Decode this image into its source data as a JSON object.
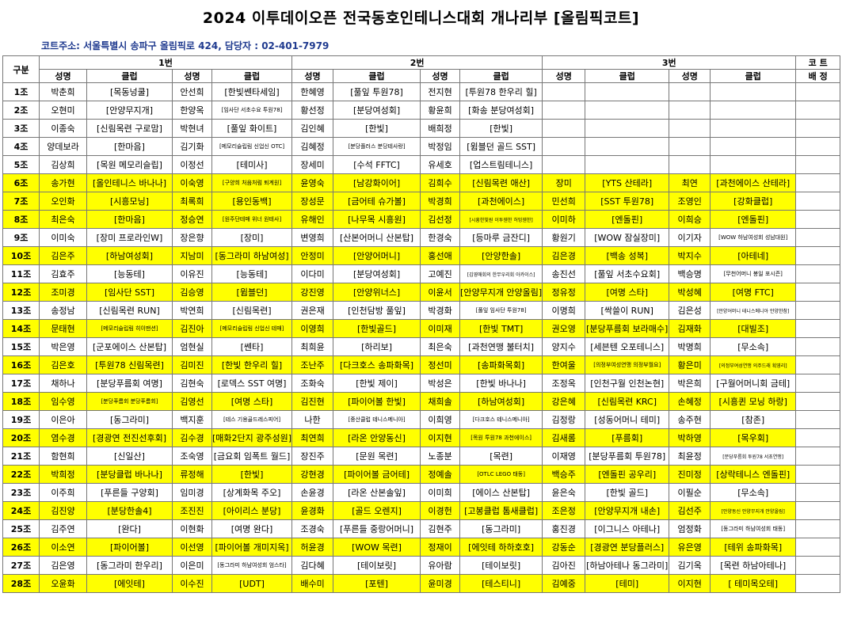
{
  "title": "2024 이투데이오픈 전국동호인테니스대회 개나리부 [올림픽코트]",
  "court_info": "코트주소: 서울특별시 송파구 올림픽로 424, 담당자 : 02-401-7979",
  "header": {
    "group": "구분",
    "court1": "1번",
    "court2": "2번",
    "court3": "3번",
    "court_no": "코 트",
    "name": "성명",
    "club": "클럽",
    "assign": "배 정"
  },
  "rows": [
    {
      "g": "1조",
      "hl": false,
      "c": [
        "박춘희",
        "[목동넝쿨]",
        "안선희",
        "[한빛쎈타세임]",
        "한혜영",
        "[풀잎 투원78]",
        "전지현",
        "[투원78 한우리 힐]",
        "",
        "",
        "",
        ""
      ]
    },
    {
      "g": "2조",
      "hl": false,
      "c": [
        "오현미",
        "[안양무지개]",
        "한양옥",
        "[임사단 서초수요 투원78]",
        "황선정",
        "[분당여성회]",
        "황윤희",
        "[화송 분당여성회]",
        "",
        "",
        "",
        ""
      ]
    },
    {
      "g": "3조",
      "hl": false,
      "c": [
        "이종숙",
        "[신림목련 구로맘]",
        "박현녀",
        "[풀잎 화이트]",
        "김인혜",
        "[한빛]",
        "배희정",
        "[한빛]",
        "",
        "",
        "",
        ""
      ]
    },
    {
      "g": "4조",
      "hl": false,
      "c": [
        "양데보라",
        "[한마음]",
        "김기화",
        "[메모리슬립림 신업신 OTC]",
        "김혜정",
        "[분당플러스 분당테사랑]",
        "박정임",
        "[윔블던 골드 SST]",
        "",
        "",
        "",
        ""
      ]
    },
    {
      "g": "5조",
      "hl": false,
      "c": [
        "김상희",
        "[목원 메모리슬립]",
        "이정선",
        "[테미사]",
        "장세미",
        "[수석 FFTC]",
        "유세호",
        "[업스트림테니스]",
        "",
        "",
        "",
        ""
      ]
    },
    {
      "g": "6조",
      "hl": true,
      "c": [
        "송가현",
        "[올인테니스 바나나]",
        "이숙영",
        "[구양희 처음처럼 퇴계원]",
        "윤영숙",
        "[남강화이어]",
        "김희수",
        "[신림목련 애산]",
        "장미",
        "[YTS 산테라]",
        "최연",
        "[과천에이스 산테라]"
      ]
    },
    {
      "g": "7조",
      "hl": true,
      "c": [
        "오인화",
        "[시흥모닝]",
        "최록희",
        "[용인동백]",
        "장성문",
        "[금어테 슈가볼]",
        "박경희",
        "[과천에이스]",
        "민선희",
        "[SST 투원78]",
        "조영인",
        "[강화클럽]"
      ]
    },
    {
      "g": "8조",
      "hl": true,
      "c": [
        "최은숙",
        "[한마음]",
        "정승연",
        "[원주단테매 위너 원테사]",
        "유해인",
        "[나무목 시흥원]",
        "김선정",
        "[시흥한빛원 이투웬한 허밍웬한]",
        "이미하",
        "[엔돌핀]",
        "이희승",
        "[엔돌핀]"
      ]
    },
    {
      "g": "9조",
      "hl": false,
      "c": [
        "이미숙",
        "[장미 프로라인W]",
        "장은향",
        "[장미]",
        "변영희",
        "[산본어머니 산본탑]",
        "한경숙",
        "[등마루 금잔디]",
        "황원기",
        "[WOW 잠실장미]",
        "이기자",
        "[WOW 하남여성회 성남대원]"
      ]
    },
    {
      "g": "10조",
      "hl": true,
      "c": [
        "김은주",
        "[하남여성회]",
        "지남미",
        "[동그라미 하남여성]",
        "안정미",
        "[안양어머니]",
        "홍선애",
        "[안양한솔]",
        "김은경",
        "[백송 성복]",
        "박지수",
        "[아테네]"
      ]
    },
    {
      "g": "11조",
      "hl": false,
      "c": [
        "김효주",
        "[능동테]",
        "이유진",
        "[능동테]",
        "이다미",
        "[분당여성회]",
        "고예진",
        "[김영애회의 한무우리회 아카이스]",
        "송진선",
        "[풀잎 서초수요회]",
        "백승명",
        "[무천어머니 봉일 포시즌]"
      ]
    },
    {
      "g": "12조",
      "hl": true,
      "c": [
        "조미경",
        "[임사단 SST]",
        "김승영",
        "[윔블던]",
        "강진영",
        "[안양위너스]",
        "이윤서",
        "[안양무지개 안양올림]",
        "정유정",
        "[여명 스타]",
        "박성혜",
        "[여명 FTC]"
      ]
    },
    {
      "g": "13조",
      "hl": false,
      "c": [
        "송정남",
        "[신림목련 RUN]",
        "박연희",
        "[신림목련]",
        "권은재",
        "[인천담방 풀잎]",
        "박경화",
        "[풀잎 임사단 투원78]",
        "이명희",
        "[싹쓸이 RUN]",
        "김은성",
        "[안양어머니 테니스메니아 안양한참]"
      ]
    },
    {
      "g": "14조",
      "hl": true,
      "c": [
        "문태현",
        "[메모리슬립림 히이맨션]",
        "김진아",
        "[메모리슬립림 신업신 테매]",
        "이영희",
        "[한빛골드]",
        "이미재",
        "[한빛 TMT]",
        "권오영",
        "[분당푸름회 보라매수]",
        "김재화",
        "[대빌조]"
      ]
    },
    {
      "g": "15조",
      "hl": false,
      "c": [
        "박은영",
        "[군포에이스 산본탑]",
        "엄현실",
        "[쎈타]",
        "최희윤",
        "[하리보]",
        "최은숙",
        "[과천연맹 불터치]",
        "양지수",
        "[세븐텐 오포테니스]",
        "박명희",
        "[무소속]"
      ]
    },
    {
      "g": "16조",
      "hl": true,
      "c": [
        "김은호",
        "[투원78 신림목련]",
        "김미진",
        "[한빛 한우리 힐]",
        "조난주",
        "[다크호스 송파화목]",
        "정선미",
        "[송파화목회]",
        "한여울",
        "[의정부여성연맹 의정부월요]",
        "황은미",
        "[의정부여성연맹 의주드래 획영리]"
      ]
    },
    {
      "g": "17조",
      "hl": false,
      "c": [
        "채하나",
        "[분당푸름회 여명]",
        "김현숙",
        "[로덱스 SST 여명]",
        "조화숙",
        "[한빛 제이]",
        "박성은",
        "[한빛 바나나]",
        "조정옥",
        "[인천구월 인천논현]",
        "박은희",
        "[구월어머니회 금테]"
      ]
    },
    {
      "g": "18조",
      "hl": true,
      "c": [
        "임수영",
        "[분당푸름회 분당푸름회]",
        "김영선",
        "[여명 스타]",
        "김진현",
        "[파이어볼 한빛]",
        "채희솔",
        "[하남여성회]",
        "강은혜",
        "[신림목련 KRC]",
        "손혜정",
        "[시흥퀸 모닝 하랑]"
      ]
    },
    {
      "g": "19조",
      "hl": false,
      "c": [
        "이은아",
        "[동그라미]",
        "백지훈",
        "[테스 기용골드레스피어]",
        "나한",
        "[중산클럽 테니스메니아]",
        "이희영",
        "[다크호스 테니스메니아]",
        "김정랑",
        "[성동어머니 테미]",
        "송주현",
        "[참존]"
      ]
    },
    {
      "g": "20조",
      "hl": true,
      "c": [
        "염수경",
        "[경광연 전진선후회]",
        "김수경",
        "[매화2단지 광주성원]",
        "최연희",
        "[라온 안양동신]",
        "이지현",
        "[목원 투원78 과천에이스]",
        "김새롬",
        "[푸름회]",
        "박하영",
        "[목우회]"
      ]
    },
    {
      "g": "21조",
      "hl": false,
      "c": [
        "함현희",
        "[신일산]",
        "조숙영",
        "[금요회 임폭트 월드]",
        "장진주",
        "[문원 목련]",
        "노종분",
        "[목련]",
        "이재영",
        "[분당푸름회 투원78]",
        "최윤정",
        "[분당푸름회 투원78 서초연맹]"
      ]
    },
    {
      "g": "22조",
      "hl": true,
      "c": [
        "박희정",
        "[분당클럽 바나나]",
        "류정해",
        "[한빛]",
        "강현경",
        "[파이어볼 금어테]",
        "정예솔",
        "[OTLC LEGO 태동]",
        "백승주",
        "[엔돌핀 공우리]",
        "진미정",
        "[상락테니스 엔돌핀]"
      ]
    },
    {
      "g": "23조",
      "hl": false,
      "c": [
        "이주희",
        "[푸른들 구양회]",
        "임미경",
        "[상계화목 주오]",
        "손윤경",
        "[라온 산본솔잎]",
        "이미희",
        "[에이스 산본탑]",
        "윤은숙",
        "[한빛 골드]",
        "이필순",
        "[무소속]"
      ]
    },
    {
      "g": "24조",
      "hl": true,
      "c": [
        "김진양",
        "[분당한솔4]",
        "조진진",
        "[아이리스 분당]",
        "윤경화",
        "[골드 오렌지]",
        "이경헌",
        "[고봉클럽 톰새클럽]",
        "조은정",
        "[안양무지개 내손]",
        "김선주",
        "[안양동신 안양무지개 안양올림]"
      ]
    },
    {
      "g": "25조",
      "hl": false,
      "c": [
        "김주연",
        "[완다]",
        "이현화",
        "[여명 완다]",
        "조경숙",
        "[푸른들 중랑어머니]",
        "김현주",
        "[동그라미]",
        "홍진경",
        "[이그니스 아테나]",
        "엄정화",
        "[동그라미 하남여성회 태동]"
      ]
    },
    {
      "g": "26조",
      "hl": true,
      "c": [
        "이소연",
        "[파이어볼]",
        "이선영",
        "[파이어볼 개미지옥]",
        "허윤경",
        "[WOW 목련]",
        "정재이",
        "[에잇테 하하호호]",
        "강동순",
        "[경광연 분당플러스]",
        "유은영",
        "[테위 송파화목]"
      ]
    },
    {
      "g": "27조",
      "hl": false,
      "c": [
        "김은영",
        "[동그라미 한우리]",
        "이은미",
        "[동그라미 하남여성회 엄스타]",
        "김다혜",
        "[테이보릿]",
        "유아람",
        "[테이보릿]",
        "김아진",
        "[하남아테나 동그라미]",
        "김기옥",
        "[목련 하남아테나]"
      ]
    },
    {
      "g": "28조",
      "hl": true,
      "c": [
        "오윤화",
        "[에잇테]",
        "이수진",
        "[UDT]",
        "배수미",
        "[포텐]",
        "윤미경",
        "[테스티니]",
        "김예중",
        "[테미]",
        "이지현",
        "[ 테미목오테]"
      ]
    }
  ]
}
